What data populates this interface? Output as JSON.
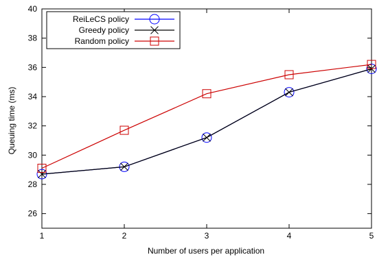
{
  "chart_data": {
    "type": "line",
    "xlabel": "Number of users per application",
    "ylabel": "Queuing time (ms)",
    "x": [
      1,
      2,
      3,
      4,
      5
    ],
    "xlim": [
      1,
      5
    ],
    "ylim": [
      25,
      40
    ],
    "xticks": [
      1,
      2,
      3,
      4,
      5
    ],
    "yticks": [
      26,
      28,
      30,
      32,
      34,
      36,
      38,
      40
    ],
    "grid": false,
    "legend_position": "top-left",
    "series": [
      {
        "name": "ReiLeCS policy",
        "values": [
          28.7,
          29.2,
          31.2,
          34.3,
          35.9
        ],
        "color": "#0000ff",
        "marker": "circle"
      },
      {
        "name": "Greedy policy",
        "values": [
          28.7,
          29.2,
          31.2,
          34.3,
          35.9
        ],
        "color": "#000000",
        "marker": "x"
      },
      {
        "name": "Random policy",
        "values": [
          29.1,
          31.7,
          34.2,
          35.5,
          36.2
        ],
        "color": "#cc0000",
        "marker": "square"
      }
    ]
  }
}
